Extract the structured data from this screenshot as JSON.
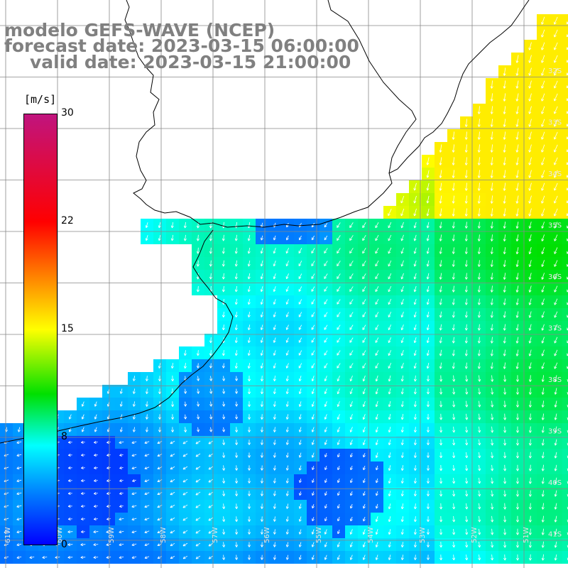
{
  "title": {
    "model": "modelo GEFS-WAVE (NCEP)",
    "forecast": "forecast date: 2023-03-15 06:00:00",
    "valid": "valid date: 2023-03-15 21:00:00"
  },
  "colorbar": {
    "unit": "[m/s]",
    "ticks": [
      "30",
      "22",
      "15",
      "8",
      "0"
    ],
    "tick_values": [
      30,
      22,
      15,
      8,
      0
    ],
    "colors": [
      "#0000ff",
      "#0080ff",
      "#00ffff",
      "#00e000",
      "#ffff00",
      "#ff8000",
      "#ff0000",
      "#c0147e"
    ]
  },
  "grid": {
    "lat_labels": [
      "32S",
      "33S",
      "34S",
      "35S",
      "36S",
      "37S",
      "38S",
      "39S",
      "40S",
      "41S"
    ],
    "lon_labels": [
      "61W",
      "60W",
      "59W",
      "58W",
      "57W",
      "56W",
      "55W",
      "54W",
      "53W",
      "52W",
      "51W"
    ]
  },
  "map": {
    "region": "Rio de la Plata / South Atlantic",
    "variable": "wind speed",
    "unit": "m/s",
    "value_range": [
      0,
      30
    ],
    "land_color": "#ffffff",
    "coastline_color": "#000000",
    "arrow_color": "#ffffff"
  }
}
